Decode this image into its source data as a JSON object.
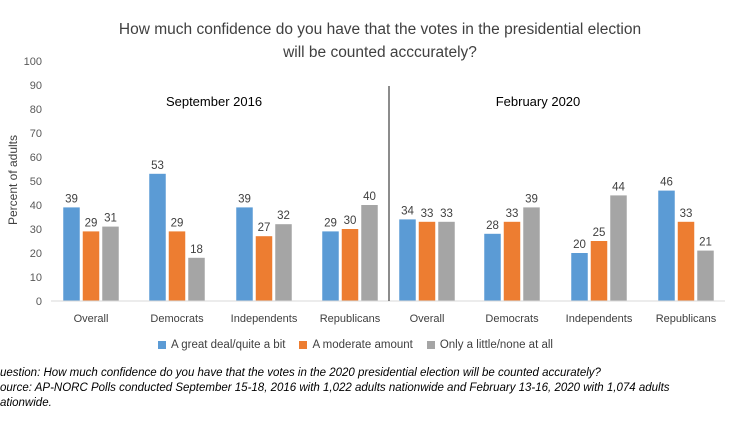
{
  "chart_data": {
    "type": "bar",
    "title_line1": "How much confidence do you have that the votes in the presidential election",
    "title_line2": "will be counted acccurately?",
    "ylabel": "Percent of adults",
    "ylim": [
      0,
      100
    ],
    "yticks": [
      0,
      10,
      20,
      30,
      40,
      50,
      60,
      70,
      80,
      90,
      100
    ],
    "grid": false,
    "legend_position": "bottom",
    "groups": [
      {
        "label": "September 2016",
        "categories": [
          "Overall",
          "Democrats",
          "Independents",
          "Republicans"
        ]
      },
      {
        "label": "February 2020",
        "categories": [
          "Overall",
          "Democrats",
          "Independents",
          "Republicans"
        ]
      }
    ],
    "series": [
      {
        "name": "A great deal/quite a bit",
        "color": "#5B9BD5",
        "values": [
          39,
          53,
          39,
          29,
          34,
          28,
          20,
          46
        ]
      },
      {
        "name": "A moderate amount",
        "color": "#ED7D31",
        "values": [
          29,
          29,
          27,
          30,
          33,
          33,
          25,
          33
        ]
      },
      {
        "name": "Only a little/none at all",
        "color": "#A5A5A5",
        "values": [
          31,
          18,
          32,
          40,
          33,
          39,
          44,
          21
        ]
      }
    ]
  },
  "notes": {
    "question": "uestion: How much confidence do you have that the votes in the 2020 presidential election will be counted accurately?",
    "source": "ource: AP-NORC Polls conducted September 15-18, 2016 with 1,022 adults nationwide and February 13-16, 2020 with 1,074 adults",
    "source_cont": "ationwide."
  }
}
